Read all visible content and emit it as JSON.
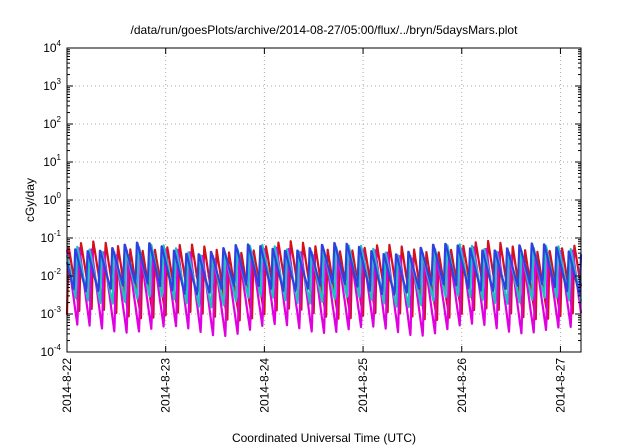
{
  "chart_data": {
    "type": "line",
    "title": "/data/run/goesPlots/archive/2014-08-27/05:00/flux/../bryn/5daysMars.plot",
    "xlabel": "Coordinated Universal Time (UTC)",
    "ylabel": "cGy/day",
    "yscale": "log",
    "ylim": [
      0.0001,
      10000
    ],
    "xlim": [
      "2014-08-22 00:00",
      "2014-08-27 05:00"
    ],
    "grid": true,
    "y_ticks": [
      {
        "base": "10",
        "exp": "-4"
      },
      {
        "base": "10",
        "exp": "-3"
      },
      {
        "base": "10",
        "exp": "-2"
      },
      {
        "base": "10",
        "exp": "-1"
      },
      {
        "base": "10",
        "exp": "0"
      },
      {
        "base": "10",
        "exp": "1"
      },
      {
        "base": "10",
        "exp": "2"
      },
      {
        "base": "10",
        "exp": "3"
      },
      {
        "base": "10",
        "exp": "4"
      }
    ],
    "x_ticks": [
      "2014-8-22",
      "2014-8-23",
      "2014-8-24",
      "2014-8-25",
      "2014-8-26",
      "2014-8-27"
    ],
    "period_hours": 3,
    "series": [
      {
        "color": "#d4101a",
        "peak": 0.06,
        "trough": 0.00095,
        "offset": 0.0
      },
      {
        "color": "#e000e0",
        "peak": 0.045,
        "trough": 0.00035,
        "offset": 0.15
      },
      {
        "color": "#20c0c0",
        "peak": 0.052,
        "trough": 0.0022,
        "offset": 0.3
      },
      {
        "color": "#3040e0",
        "peak": 0.058,
        "trough": 0.0045,
        "offset": 0.45
      }
    ]
  }
}
